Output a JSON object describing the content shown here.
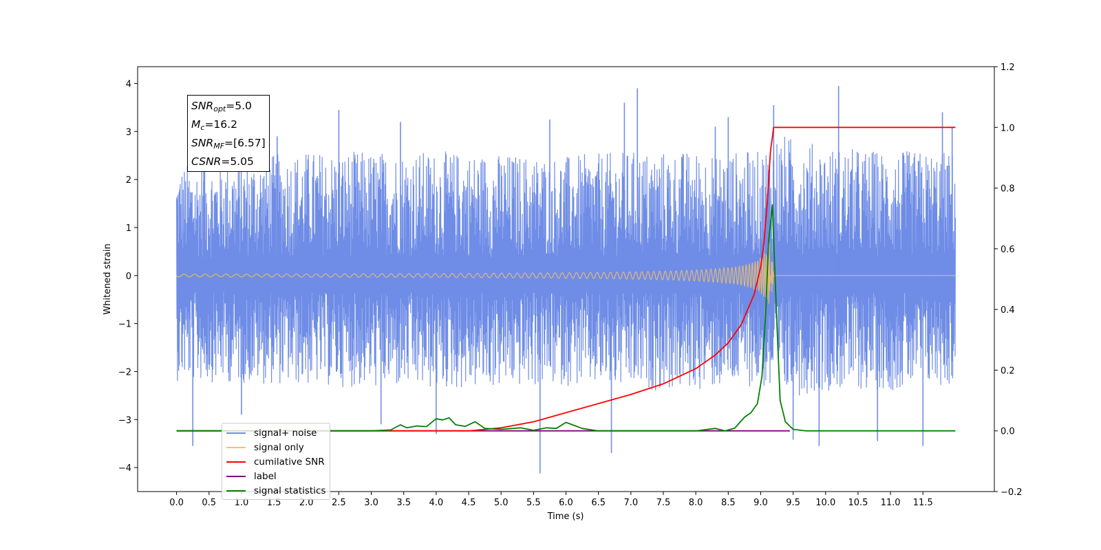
{
  "chart_data": {
    "type": "line",
    "xlabel": "Time (s)",
    "ylabel": "Whitened strain",
    "xlim": [
      -0.6,
      12.6
    ],
    "ylim": [
      -4.5,
      4.35
    ],
    "ylim_right": [
      -0.2,
      1.2
    ],
    "x_ticks": [
      "0.0",
      "0.5",
      "1.0",
      "1.5",
      "2.0",
      "2.5",
      "3.0",
      "3.5",
      "4.0",
      "4.5",
      "5.0",
      "5.5",
      "6.0",
      "6.5",
      "7.0",
      "7.5",
      "8.0",
      "8.5",
      "9.0",
      "9.5",
      "10.0",
      "10.5",
      "11.0",
      "11.5"
    ],
    "x_tick_values": [
      0.0,
      0.5,
      1.0,
      1.5,
      2.0,
      2.5,
      3.0,
      3.5,
      4.0,
      4.5,
      5.0,
      5.5,
      6.0,
      6.5,
      7.0,
      7.5,
      8.0,
      8.5,
      9.0,
      9.5,
      10.0,
      10.5,
      11.0,
      11.5
    ],
    "y_ticks_left": [
      "4",
      "3",
      "2",
      "1",
      "0",
      "−1",
      "−2",
      "−3",
      "−4"
    ],
    "y_tick_values_left": [
      4,
      3,
      2,
      1,
      0,
      -1,
      -2,
      -3,
      -4
    ],
    "y_ticks_right": [
      "1.2",
      "1.0",
      "0.8",
      "0.6",
      "0.4",
      "0.2",
      "0.0",
      "−0.2"
    ],
    "y_tick_values_right": [
      1.2,
      1.0,
      0.8,
      0.6,
      0.4,
      0.2,
      0.0,
      -0.2
    ],
    "annotation": {
      "snr_opt": {
        "sym": "SNR",
        "sub": "opt",
        "value": "=5.0"
      },
      "mc": {
        "sym": "M",
        "sub": "c",
        "value": "=16.2"
      },
      "snr_mf": {
        "sym": "SNR",
        "sub": "MF",
        "value": "=[6.57]"
      },
      "csnr": {
        "sym": "CSNR",
        "value": "=5.05"
      }
    },
    "series": [
      {
        "name": "signal+ noise",
        "axis": "left",
        "color": "#6f8de6",
        "envelope_x": [
          0.0,
          2.0,
          4.0,
          6.0,
          7.0,
          8.0,
          9.0,
          9.2,
          10.0,
          11.0,
          12.0
        ],
        "envelope_upper": [
          2.3,
          2.6,
          2.6,
          2.5,
          2.6,
          2.6,
          2.6,
          3.0,
          2.7,
          2.6,
          2.6
        ],
        "envelope_lower": [
          -2.2,
          -2.3,
          -2.4,
          -2.3,
          -2.4,
          -2.4,
          -2.3,
          -2.6,
          -2.4,
          -2.4,
          -2.3
        ],
        "spikes": [
          [
            0.25,
            -3.55
          ],
          [
            0.42,
            2.4
          ],
          [
            1.0,
            -2.9
          ],
          [
            1.55,
            2.9
          ],
          [
            2.5,
            3.45
          ],
          [
            3.15,
            -3.1
          ],
          [
            3.45,
            3.2
          ],
          [
            4.0,
            -3.3
          ],
          [
            5.6,
            -4.12
          ],
          [
            5.75,
            3.25
          ],
          [
            6.7,
            -3.7
          ],
          [
            6.9,
            3.6
          ],
          [
            7.1,
            3.9
          ],
          [
            8.3,
            3.1
          ],
          [
            8.5,
            3.3
          ],
          [
            9.2,
            3.55
          ],
          [
            9.5,
            -3.42
          ],
          [
            9.9,
            -3.55
          ],
          [
            10.2,
            3.95
          ],
          [
            10.8,
            -3.45
          ],
          [
            11.5,
            -3.55
          ],
          [
            11.8,
            3.4
          ],
          [
            11.95,
            3.1
          ]
        ]
      },
      {
        "name": "signal only",
        "axis": "left",
        "color": "#f5c06a",
        "chirp_end": 9.16,
        "chirp_peak_amplitude": 0.95
      },
      {
        "name": "cumilative SNR",
        "axis": "right",
        "color": "#ff0000",
        "x": [
          0.0,
          3.0,
          4.5,
          5.0,
          5.5,
          6.0,
          6.5,
          7.0,
          7.5,
          8.0,
          8.3,
          8.5,
          8.7,
          8.9,
          9.0,
          9.05,
          9.1,
          9.15,
          9.2,
          10.0,
          11.0,
          12.0
        ],
        "y": [
          0.0,
          0.0,
          0.0,
          0.01,
          0.03,
          0.06,
          0.09,
          0.12,
          0.155,
          0.205,
          0.25,
          0.29,
          0.35,
          0.45,
          0.54,
          0.62,
          0.75,
          0.92,
          1.0,
          1.0,
          1.0,
          1.0
        ]
      },
      {
        "name": "label",
        "axis": "right",
        "color": "#800080",
        "x": [
          0.0,
          9.45
        ],
        "y": [
          0.0,
          0.0
        ]
      },
      {
        "name": "signal statistics",
        "axis": "right",
        "color": "#008000",
        "x": [
          0.0,
          3.0,
          3.3,
          3.45,
          3.55,
          3.7,
          3.85,
          4.0,
          4.1,
          4.2,
          4.3,
          4.45,
          4.6,
          4.75,
          5.0,
          5.3,
          5.5,
          5.7,
          5.85,
          6.0,
          6.1,
          6.25,
          6.5,
          7.0,
          8.0,
          8.3,
          8.45,
          8.6,
          8.75,
          8.85,
          8.95,
          9.02,
          9.08,
          9.12,
          9.18,
          9.25,
          9.3,
          9.38,
          9.5,
          9.7,
          12.0
        ],
        "y": [
          0.0,
          0.0,
          0.003,
          0.02,
          0.01,
          0.016,
          0.014,
          0.04,
          0.036,
          0.043,
          0.02,
          0.015,
          0.03,
          0.008,
          0.005,
          0.01,
          0.002,
          0.01,
          0.008,
          0.028,
          0.02,
          0.008,
          0.0,
          0.0,
          0.0,
          0.008,
          0.0,
          0.009,
          0.045,
          0.06,
          0.09,
          0.18,
          0.4,
          0.62,
          0.745,
          0.35,
          0.1,
          0.03,
          0.005,
          0.0,
          0.0
        ]
      }
    ],
    "legend": {
      "placement": "bottom-left",
      "entries": [
        "signal+ noise",
        "signal only",
        "cumilative SNR",
        "label",
        "signal statistics"
      ]
    }
  }
}
